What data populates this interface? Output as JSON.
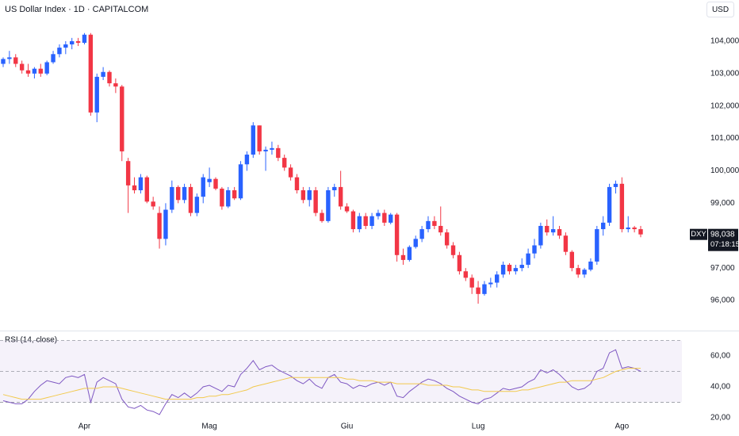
{
  "chart_data": [
    {
      "type": "candlestick",
      "title": "US Dollar Index · 1D · CAPITALCOM",
      "currency": "USD",
      "up_color": "#2962ff",
      "down_color": "#f23645",
      "ylim": [
        95.12,
        105.27
      ],
      "yticks": [
        {
          "value": 96,
          "label": "96,000"
        },
        {
          "value": 97,
          "label": "97,000"
        },
        {
          "value": 98,
          "label": "98,000"
        },
        {
          "value": 99,
          "label": "99,000"
        },
        {
          "value": 100,
          "label": "100,000"
        },
        {
          "value": 101,
          "label": "101,000"
        },
        {
          "value": 102,
          "label": "102,000"
        },
        {
          "value": 103,
          "label": "103,000"
        },
        {
          "value": 104,
          "label": "104,000"
        }
      ],
      "price_tag": {
        "symbol": "DXY",
        "value": 98.038,
        "label": "98,038",
        "countdown": "07:18:15"
      },
      "categories": [
        null,
        null,
        null,
        null,
        null,
        null,
        null,
        null,
        null,
        null,
        null,
        null,
        null,
        "Apr",
        null,
        null,
        null,
        null,
        null,
        null,
        null,
        null,
        null,
        null,
        null,
        null,
        null,
        null,
        null,
        null,
        null,
        null,
        null,
        "Mag",
        null,
        null,
        null,
        null,
        null,
        null,
        null,
        null,
        null,
        null,
        null,
        null,
        null,
        null,
        null,
        null,
        null,
        null,
        null,
        null,
        null,
        "Giu",
        null,
        null,
        null,
        null,
        null,
        null,
        null,
        null,
        null,
        null,
        null,
        null,
        null,
        null,
        null,
        null,
        null,
        null,
        null,
        null,
        "Lug",
        null,
        null,
        null,
        null,
        null,
        null,
        null,
        null,
        null,
        null,
        null,
        null,
        null,
        null,
        null,
        null,
        null,
        null,
        null,
        null,
        null,
        null,
        "Ago",
        null,
        null,
        null
      ],
      "ohlc": [
        [
          103.3,
          103.5,
          103.2,
          103.45
        ],
        [
          103.45,
          103.7,
          103.3,
          103.5
        ],
        [
          103.5,
          103.6,
          103.2,
          103.3
        ],
        [
          103.3,
          103.4,
          103.0,
          103.1
        ],
        [
          103.1,
          103.3,
          102.9,
          103.0
        ],
        [
          103.0,
          103.2,
          102.85,
          103.15
        ],
        [
          103.15,
          103.3,
          102.9,
          103.0
        ],
        [
          103.0,
          103.4,
          102.95,
          103.35
        ],
        [
          103.35,
          103.7,
          103.3,
          103.6
        ],
        [
          103.6,
          103.9,
          103.5,
          103.8
        ],
        [
          103.8,
          104.0,
          103.6,
          103.9
        ],
        [
          103.9,
          104.1,
          103.75,
          104.0
        ],
        [
          104.0,
          104.1,
          103.85,
          103.95
        ],
        [
          103.95,
          104.25,
          103.9,
          104.2
        ],
        [
          104.2,
          104.25,
          101.7,
          101.8
        ],
        [
          101.8,
          103.0,
          101.5,
          102.9
        ],
        [
          102.9,
          103.2,
          102.8,
          103.05
        ],
        [
          103.05,
          103.1,
          102.6,
          102.7
        ],
        [
          102.7,
          102.85,
          102.4,
          102.6
        ],
        [
          102.6,
          102.65,
          100.3,
          100.6
        ],
        [
          100.3,
          100.4,
          98.7,
          99.55
        ],
        [
          99.55,
          99.8,
          99.3,
          99.4
        ],
        [
          99.4,
          99.9,
          99.3,
          99.8
        ],
        [
          99.8,
          99.85,
          99.0,
          99.05
        ],
        [
          99.05,
          99.2,
          98.8,
          98.9
        ],
        [
          98.7,
          98.9,
          97.6,
          97.9
        ],
        [
          97.9,
          99.0,
          97.7,
          98.8
        ],
        [
          98.8,
          99.7,
          98.7,
          99.5
        ],
        [
          99.5,
          99.55,
          99.0,
          99.1
        ],
        [
          99.1,
          99.6,
          99.0,
          99.5
        ],
        [
          99.5,
          99.6,
          98.6,
          98.7
        ],
        [
          98.7,
          99.3,
          98.6,
          99.2
        ],
        [
          99.2,
          99.9,
          99.0,
          99.8
        ],
        [
          99.65,
          100.1,
          99.5,
          99.75
        ],
        [
          99.75,
          99.8,
          99.4,
          99.45
        ],
        [
          99.45,
          99.5,
          98.8,
          98.9
        ],
        [
          98.9,
          99.5,
          98.85,
          99.4
        ],
        [
          99.4,
          99.5,
          99.1,
          99.15
        ],
        [
          99.15,
          100.3,
          99.1,
          100.2
        ],
        [
          100.2,
          100.6,
          100.0,
          100.5
        ],
        [
          100.5,
          101.5,
          100.4,
          101.4
        ],
        [
          101.4,
          101.4,
          100.5,
          100.6
        ],
        [
          100.6,
          100.75,
          100.0,
          100.65
        ],
        [
          100.65,
          100.9,
          100.5,
          100.7
        ],
        [
          100.7,
          100.8,
          100.3,
          100.4
        ],
        [
          100.4,
          100.5,
          100.0,
          100.1
        ],
        [
          100.1,
          100.2,
          99.7,
          99.8
        ],
        [
          99.8,
          99.9,
          99.3,
          99.4
        ],
        [
          99.4,
          99.5,
          99.0,
          99.1
        ],
        [
          99.1,
          99.5,
          98.9,
          99.4
        ],
        [
          99.4,
          99.5,
          98.6,
          98.7
        ],
        [
          98.7,
          98.8,
          98.4,
          98.45
        ],
        [
          98.45,
          99.5,
          98.4,
          99.4
        ],
        [
          99.4,
          99.6,
          99.2,
          99.5
        ],
        [
          99.5,
          100.0,
          98.8,
          98.9
        ],
        [
          98.9,
          99.0,
          98.7,
          98.75
        ],
        [
          98.75,
          98.8,
          98.1,
          98.2
        ],
        [
          98.2,
          98.7,
          98.1,
          98.6
        ],
        [
          98.6,
          98.7,
          98.2,
          98.3
        ],
        [
          98.3,
          98.7,
          98.2,
          98.6
        ],
        [
          98.6,
          98.8,
          98.5,
          98.7
        ],
        [
          98.7,
          98.8,
          98.3,
          98.4
        ],
        [
          98.4,
          98.7,
          98.35,
          98.65
        ],
        [
          98.65,
          98.7,
          97.2,
          97.4
        ],
        [
          97.4,
          97.6,
          97.1,
          97.25
        ],
        [
          97.25,
          97.7,
          97.2,
          97.65
        ],
        [
          97.65,
          98.0,
          97.6,
          97.9
        ],
        [
          97.9,
          98.3,
          97.8,
          98.2
        ],
        [
          98.2,
          98.6,
          98.1,
          98.45
        ],
        [
          98.45,
          98.6,
          98.2,
          98.3
        ],
        [
          98.3,
          98.9,
          98.0,
          98.1
        ],
        [
          98.1,
          98.2,
          97.6,
          97.7
        ],
        [
          97.7,
          97.8,
          97.3,
          97.4
        ],
        [
          97.4,
          97.5,
          96.8,
          96.9
        ],
        [
          96.9,
          97.0,
          96.6,
          96.7
        ],
        [
          96.7,
          96.8,
          96.2,
          96.4
        ],
        [
          96.4,
          96.6,
          95.9,
          96.2
        ],
        [
          96.2,
          96.6,
          96.15,
          96.5
        ],
        [
          96.5,
          96.7,
          96.4,
          96.55
        ],
        [
          96.55,
          96.9,
          96.4,
          96.8
        ],
        [
          96.8,
          97.2,
          96.7,
          97.1
        ],
        [
          97.1,
          97.15,
          96.8,
          96.9
        ],
        [
          96.9,
          97.1,
          96.8,
          97.0
        ],
        [
          97.0,
          97.3,
          96.9,
          97.1
        ],
        [
          97.1,
          97.6,
          97.0,
          97.45
        ],
        [
          97.45,
          97.9,
          97.3,
          97.7
        ],
        [
          97.7,
          98.4,
          97.6,
          98.3
        ],
        [
          98.3,
          98.5,
          98.0,
          98.1
        ],
        [
          98.1,
          98.6,
          98.0,
          98.2
        ],
        [
          98.2,
          98.3,
          97.9,
          98.0
        ],
        [
          98.0,
          98.1,
          97.4,
          97.5
        ],
        [
          97.5,
          97.55,
          96.9,
          97.0
        ],
        [
          97.0,
          97.1,
          96.7,
          96.8
        ],
        [
          96.8,
          97.0,
          96.7,
          96.95
        ],
        [
          96.95,
          97.3,
          96.9,
          97.2
        ],
        [
          97.2,
          98.3,
          97.1,
          98.2
        ],
        [
          98.2,
          98.6,
          98.0,
          98.4
        ],
        [
          98.4,
          99.6,
          98.3,
          99.5
        ],
        [
          99.5,
          99.7,
          99.3,
          99.6
        ],
        [
          99.6,
          99.8,
          98.1,
          98.2
        ],
        [
          98.2,
          98.6,
          98.1,
          98.25
        ],
        [
          98.25,
          98.3,
          98.1,
          98.2
        ],
        [
          98.2,
          98.3,
          97.95,
          98.038
        ]
      ]
    },
    {
      "type": "line",
      "title": "RSI (14, close)",
      "ylim": [
        13.3,
        75.9
      ],
      "yticks": [
        {
          "value": 20,
          "label": "20,00"
        },
        {
          "value": 40,
          "label": "40,00"
        },
        {
          "value": 60,
          "label": "60,00"
        }
      ],
      "levels": [
        30,
        50,
        70
      ],
      "band_color": "#7e57c2",
      "series": [
        {
          "color": "#7e57c2",
          "values": [
            31,
            30,
            29,
            29,
            32,
            37,
            41,
            44,
            43,
            42,
            46,
            47,
            46,
            48,
            30,
            43,
            46,
            44,
            42,
            32,
            27,
            26,
            28,
            25,
            24,
            22,
            29,
            35,
            33,
            36,
            33,
            36,
            40,
            41,
            39,
            37,
            41,
            40,
            48,
            52,
            57,
            51,
            53,
            54,
            51,
            49,
            47,
            44,
            42,
            45,
            41,
            39,
            46,
            48,
            43,
            42,
            39,
            41,
            40,
            42,
            43,
            41,
            43,
            34,
            33,
            37,
            40,
            43,
            45,
            44,
            42,
            39,
            37,
            34,
            32,
            30,
            29,
            32,
            33,
            36,
            39,
            38,
            39,
            40,
            43,
            45,
            51,
            49,
            51,
            48,
            44,
            40,
            38,
            39,
            42,
            50,
            52,
            62,
            64,
            52,
            53,
            52,
            50
          ]
        },
        {
          "color": "#f2c94c",
          "values": [
            35,
            34,
            33,
            32,
            32,
            32,
            32,
            33,
            34,
            35,
            36,
            37,
            38,
            39,
            39,
            39,
            40,
            40,
            40,
            39,
            38,
            37,
            36,
            35,
            34,
            33,
            32,
            32,
            32,
            32,
            32,
            33,
            33,
            34,
            34,
            35,
            35,
            36,
            37,
            38,
            40,
            41,
            42,
            43,
            44,
            45,
            46,
            46,
            46,
            46,
            46,
            46,
            46,
            46,
            46,
            45,
            45,
            44,
            44,
            44,
            43,
            43,
            43,
            42,
            42,
            42,
            42,
            42,
            41,
            41,
            41,
            41,
            40,
            40,
            39,
            38,
            38,
            37,
            37,
            37,
            37,
            37,
            37,
            38,
            38,
            39,
            40,
            41,
            42,
            43,
            43,
            44,
            44,
            44,
            44,
            45,
            46,
            48,
            50,
            51,
            52,
            52,
            52
          ]
        }
      ]
    }
  ]
}
